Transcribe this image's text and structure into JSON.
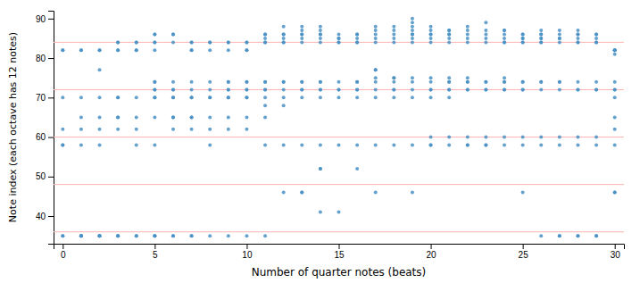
{
  "chart_data": {
    "type": "scatter",
    "xlabel": "Number of quarter notes (beats)",
    "ylabel": "Note index (each octave has 12 notes)",
    "xlim": [
      -0.5,
      30.5
    ],
    "ylim": [
      33,
      92
    ],
    "xticks": [
      0,
      5,
      10,
      15,
      20,
      25,
      30
    ],
    "yticks": [
      40,
      50,
      60,
      70,
      80,
      90
    ],
    "color": "#4a90c4",
    "hlines": {
      "values": [
        36,
        48,
        60,
        72,
        84
      ],
      "color": "#ffb3b3"
    },
    "x": [
      0,
      0,
      0,
      0,
      0,
      0,
      0,
      0,
      1,
      1,
      1,
      1,
      1,
      1,
      1,
      1,
      1,
      1,
      2,
      2,
      2,
      2,
      2,
      2,
      2,
      2,
      2,
      2,
      2,
      3,
      3,
      3,
      3,
      3,
      3,
      3,
      3,
      3,
      3,
      3,
      3,
      4,
      4,
      4,
      4,
      4,
      4,
      4,
      4,
      4,
      4,
      5,
      5,
      5,
      5,
      5,
      5,
      5,
      5,
      5,
      5,
      5,
      5,
      5,
      5,
      5,
      5,
      6,
      6,
      6,
      6,
      6,
      6,
      6,
      6,
      6,
      6,
      6,
      6,
      6,
      7,
      7,
      7,
      7,
      7,
      7,
      7,
      7,
      7,
      7,
      7,
      7,
      7,
      8,
      8,
      8,
      8,
      8,
      8,
      8,
      8,
      8,
      8,
      8,
      9,
      9,
      9,
      9,
      9,
      9,
      9,
      9,
      9,
      9,
      9,
      9,
      10,
      10,
      10,
      10,
      10,
      10,
      10,
      10,
      10,
      10,
      10,
      10,
      10,
      11,
      11,
      11,
      11,
      11,
      11,
      11,
      11,
      11,
      11,
      11,
      11,
      11,
      11,
      12,
      12,
      12,
      12,
      12,
      12,
      12,
      12,
      12,
      12,
      12,
      12,
      12,
      13,
      13,
      13,
      13,
      13,
      13,
      13,
      13,
      13,
      13,
      13,
      13,
      13,
      13,
      14,
      14,
      14,
      14,
      14,
      14,
      14,
      14,
      14,
      14,
      14,
      14,
      14,
      14,
      14,
      15,
      15,
      15,
      15,
      15,
      15,
      15,
      15,
      15,
      15,
      15,
      16,
      16,
      16,
      16,
      16,
      16,
      16,
      16,
      16,
      16,
      16,
      16,
      17,
      17,
      17,
      17,
      17,
      17,
      17,
      17,
      17,
      17,
      17,
      17,
      17,
      18,
      18,
      18,
      18,
      18,
      18,
      18,
      18,
      18,
      18,
      18,
      18,
      19,
      19,
      19,
      19,
      19,
      19,
      19,
      19,
      19,
      19,
      19,
      19,
      19,
      19,
      20,
      20,
      20,
      20,
      20,
      20,
      20,
      20,
      20,
      20,
      20,
      20,
      20,
      20,
      21,
      21,
      21,
      21,
      21,
      21,
      21,
      21,
      21,
      21,
      21,
      21,
      21,
      21,
      22,
      22,
      22,
      22,
      22,
      22,
      22,
      22,
      22,
      22,
      22,
      22,
      22,
      23,
      23,
      23,
      23,
      23,
      23,
      23,
      23,
      23,
      23,
      23,
      23,
      24,
      24,
      24,
      24,
      24,
      24,
      24,
      24,
      24,
      24,
      24,
      24,
      24,
      25,
      25,
      25,
      25,
      25,
      25,
      25,
      25,
      25,
      25,
      25,
      25,
      25,
      26,
      26,
      26,
      26,
      26,
      26,
      26,
      26,
      26,
      26,
      26,
      26,
      26,
      27,
      27,
      27,
      27,
      27,
      27,
      27,
      27,
      27,
      27,
      27,
      27,
      28,
      28,
      28,
      28,
      28,
      28,
      28,
      28,
      28,
      28,
      28,
      28,
      28,
      29,
      29,
      29,
      29,
      29,
      29,
      29,
      29,
      29,
      29,
      29,
      29,
      30,
      30,
      30,
      30,
      30,
      30,
      30,
      30,
      30,
      30,
      30,
      30,
      30,
      30
    ],
    "values": [
      82,
      82,
      70,
      62,
      58,
      58,
      35,
      35,
      82,
      82,
      70,
      65,
      62,
      58,
      35,
      35,
      35,
      35,
      77,
      82,
      82,
      70,
      65,
      62,
      58,
      35,
      35,
      35,
      35,
      82,
      84,
      84,
      82,
      70,
      70,
      65,
      65,
      62,
      35,
      35,
      35,
      84,
      84,
      82,
      82,
      70,
      65,
      62,
      58,
      35,
      35,
      86,
      86,
      84,
      84,
      82,
      74,
      74,
      72,
      72,
      70,
      70,
      65,
      58,
      35,
      35,
      35,
      86,
      86,
      84,
      74,
      72,
      72,
      70,
      70,
      65,
      65,
      62,
      35,
      35,
      84,
      84,
      82,
      82,
      74,
      72,
      70,
      70,
      65,
      65,
      62,
      35,
      35,
      84,
      84,
      82,
      74,
      72,
      70,
      70,
      65,
      62,
      58,
      35,
      84,
      84,
      82,
      74,
      74,
      72,
      72,
      70,
      70,
      65,
      62,
      35,
      84,
      84,
      82,
      82,
      74,
      74,
      72,
      72,
      70,
      70,
      65,
      62,
      35,
      86,
      86,
      85,
      84,
      84,
      74,
      74,
      72,
      72,
      70,
      68,
      65,
      58,
      35,
      88,
      86,
      86,
      85,
      84,
      84,
      74,
      74,
      72,
      70,
      68,
      58,
      46,
      88,
      87,
      86,
      86,
      85,
      84,
      74,
      74,
      72,
      72,
      70,
      58,
      46,
      46,
      88,
      87,
      86,
      86,
      85,
      84,
      74,
      74,
      72,
      72,
      70,
      58,
      52,
      52,
      41,
      86,
      85,
      85,
      84,
      84,
      74,
      72,
      72,
      70,
      58,
      41,
      86,
      86,
      85,
      84,
      84,
      74,
      74,
      72,
      72,
      70,
      58,
      52,
      88,
      87,
      86,
      85,
      84,
      77,
      77,
      75,
      74,
      72,
      70,
      58,
      46,
      88,
      87,
      86,
      85,
      84,
      75,
      75,
      74,
      72,
      72,
      70,
      58,
      90,
      89,
      88,
      87,
      86,
      86,
      85,
      84,
      75,
      74,
      72,
      70,
      58,
      46,
      88,
      87,
      86,
      86,
      85,
      84,
      75,
      74,
      72,
      72,
      70,
      60,
      58,
      58,
      87,
      87,
      86,
      86,
      85,
      84,
      75,
      74,
      74,
      72,
      72,
      70,
      60,
      58,
      88,
      87,
      86,
      85,
      84,
      75,
      74,
      74,
      72,
      72,
      60,
      58,
      58,
      89,
      87,
      86,
      85,
      84,
      74,
      74,
      72,
      72,
      60,
      58,
      58,
      87,
      87,
      86,
      85,
      84,
      84,
      75,
      74,
      74,
      72,
      72,
      60,
      58,
      86,
      86,
      85,
      85,
      84,
      84,
      74,
      74,
      72,
      72,
      60,
      58,
      46,
      87,
      86,
      86,
      85,
      85,
      84,
      84,
      74,
      74,
      72,
      60,
      58,
      35,
      87,
      86,
      85,
      85,
      84,
      74,
      74,
      72,
      60,
      58,
      35,
      35,
      87,
      86,
      86,
      85,
      84,
      84,
      74,
      72,
      72,
      60,
      58,
      35,
      35,
      86,
      86,
      85,
      84,
      84,
      74,
      72,
      72,
      60,
      58,
      35,
      35,
      82,
      82,
      82,
      82,
      81,
      74,
      72,
      72,
      70,
      65,
      62,
      58,
      46,
      46
    ]
  }
}
